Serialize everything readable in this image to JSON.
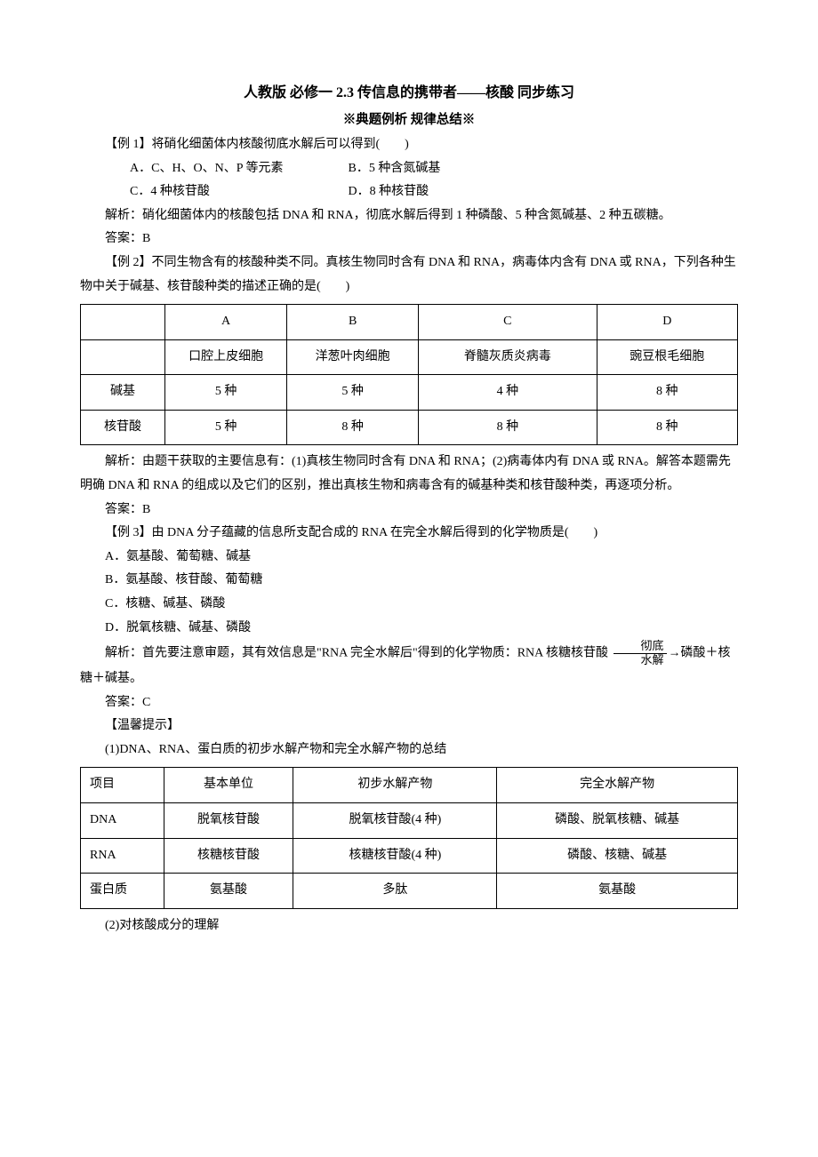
{
  "doc": {
    "title": "人教版 必修一  2.3  传信息的携带者——核酸  同步练习",
    "subtitle": "※典题例析 规律总结※"
  },
  "ex1": {
    "stem": "【例 1】将硝化细菌体内核酸彻底水解后可以得到(　　)",
    "optA": "A．C、H、O、N、P 等元素",
    "optB": "B．5 种含氮碱基",
    "optC": "C．4 种核苷酸",
    "optD": "D．8 种核苷酸",
    "analysis": "解析：硝化细菌体内的核酸包括 DNA 和 RNA，彻底水解后得到 1 种磷酸、5 种含氮碱基、2 种五碳糖。",
    "answer": "答案：B"
  },
  "ex2": {
    "stem": "【例 2】不同生物含有的核酸种类不同。真核生物同时含有 DNA 和 RNA，病毒体内含有 DNA 或 RNA，下列各种生物中关于碱基、核苷酸种类的描述正确的是(　　)",
    "table": {
      "headers": [
        "",
        "A",
        "B",
        "C",
        "D"
      ],
      "row_type": [
        "",
        "口腔上皮细胞",
        "洋葱叶肉细胞",
        "脊髓灰质炎病毒",
        "豌豆根毛细胞"
      ],
      "rows": [
        [
          "碱基",
          "5 种",
          "5 种",
          "4 种",
          "8 种"
        ],
        [
          "核苷酸",
          "5 种",
          "8 种",
          "8 种",
          "8 种"
        ]
      ],
      "col_widths": [
        "90px",
        "130px",
        "140px",
        "190px",
        "150px"
      ]
    },
    "analysis": "解析：由题干获取的主要信息有：(1)真核生物同时含有 DNA 和 RNA；(2)病毒体内有 DNA 或 RNA。解答本题需先明确 DNA 和 RNA 的组成以及它们的区别，推出真核生物和病毒含有的碱基种类和核苷酸种类，再逐项分析。",
    "answer": "答案：B"
  },
  "ex3": {
    "stem": "【例 3】由 DNA 分子蕴藏的信息所支配合成的 RNA 在完全水解后得到的化学物质是(　　)",
    "optA": "A．氨基酸、葡萄糖、碱基",
    "optB": "B．氨基酸、核苷酸、葡萄糖",
    "optC": "C．核糖、碱基、磷酸",
    "optD": "D．脱氧核糖、碱基、磷酸",
    "analysis_pre": "解析：首先要注意审题，其有效信息是\"RNA 完全水解后\"得到的化学物质：RNA 核糖核苷酸",
    "frac_top": "彻底",
    "frac_bot": "水解",
    "analysis_post": "磷酸＋核糖＋碱基。",
    "answer": "答案：C"
  },
  "tip": {
    "heading": "【温馨提示】",
    "line1": "(1)DNA、RNA、蛋白质的初步水解产物和完全水解产物的总结",
    "table": {
      "headers": [
        "项目",
        "基本单位",
        "初步水解产物",
        "完全水解产物"
      ],
      "rows": [
        [
          "DNA",
          "脱氧核苷酸",
          "脱氧核苷酸(4 种)",
          "磷酸、脱氧核糖、碱基"
        ],
        [
          "RNA",
          "核糖核苷酸",
          "核糖核苷酸(4 种)",
          "磷酸、核糖、碱基"
        ],
        [
          "蛋白质",
          "氨基酸",
          "多肽",
          "氨基酸"
        ]
      ],
      "col_widths": [
        "90px",
        "140px",
        "220px",
        "260px"
      ]
    },
    "line2": "(2)对核酸成分的理解"
  }
}
